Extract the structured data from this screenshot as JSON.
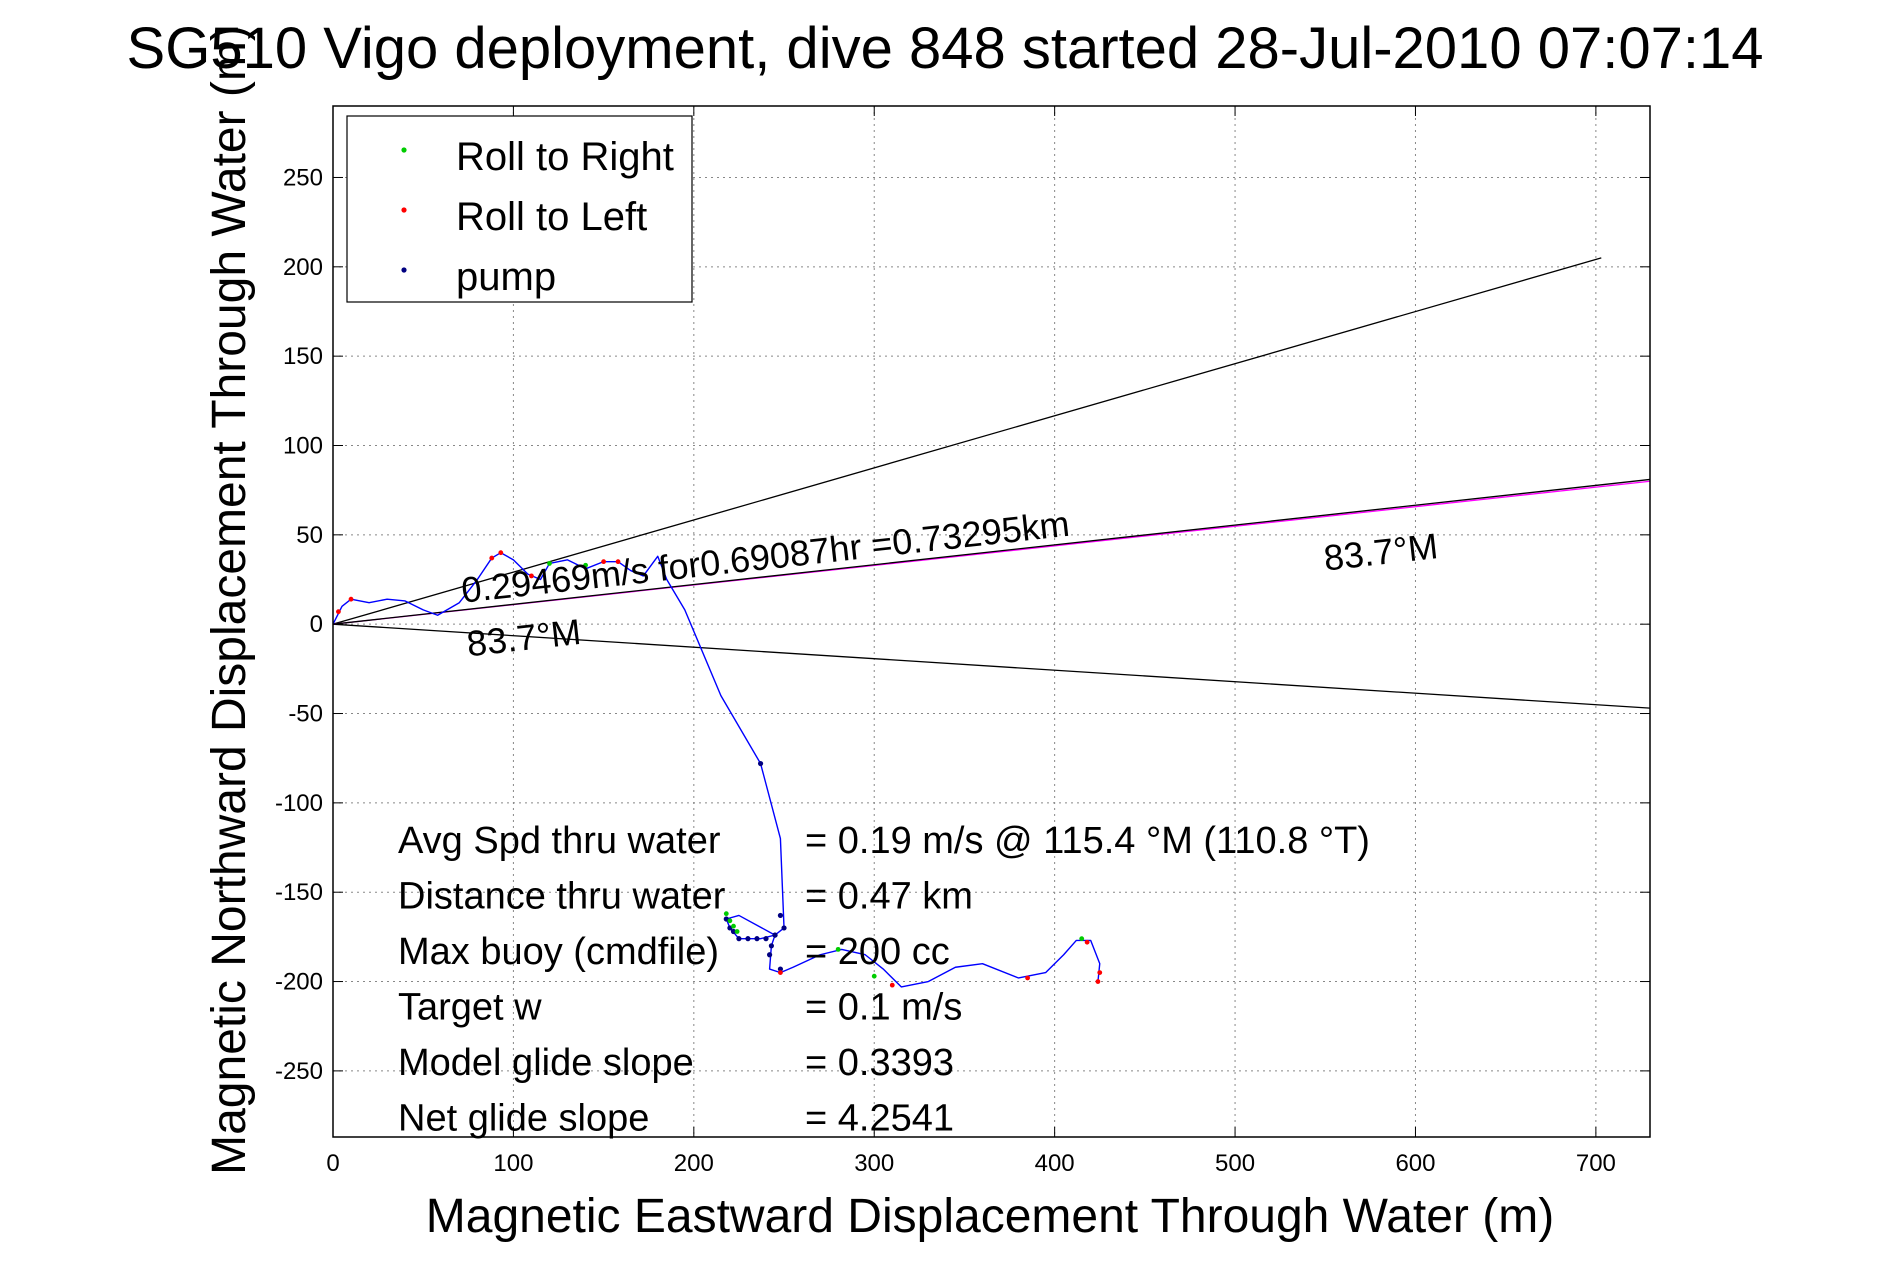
{
  "chart_data": {
    "type": "line",
    "title": "SG510 Vigo deployment, dive 848 started 28-Jul-2010 07:07:14",
    "xlabel": "Magnetic Eastward Displacement Through Water (m)",
    "ylabel": "Magnetic Northward Displacement Through Water (m)",
    "xlim": [
      0,
      730
    ],
    "ylim": [
      -287,
      290
    ],
    "xticks": [
      0,
      100,
      200,
      300,
      400,
      500,
      600,
      700
    ],
    "yticks": [
      250,
      200,
      150,
      100,
      50,
      0,
      -50,
      -100,
      -150,
      -200,
      -250
    ],
    "grid": true,
    "legend_position": "top-left",
    "legend": [
      {
        "label": "Roll to Right",
        "color": "#00cc00"
      },
      {
        "label": "Roll to Left",
        "color": "#ff0000"
      },
      {
        "label": "pump",
        "color": "#000080"
      }
    ],
    "track": {
      "color": "#0000ff",
      "x": [
        0,
        5,
        10,
        20,
        30,
        40,
        50,
        58,
        70,
        80,
        88,
        93,
        100,
        108,
        115,
        120,
        130,
        140,
        150,
        158,
        165,
        172,
        180,
        185,
        195,
        215,
        237,
        248,
        250,
        245,
        237,
        225,
        220,
        218,
        225,
        245,
        243,
        242,
        248,
        255,
        270,
        282,
        295,
        305,
        315,
        330,
        345,
        360,
        380,
        395,
        405,
        412,
        420,
        425,
        424
      ],
      "y": [
        0,
        10,
        14,
        12,
        14,
        13,
        8,
        5,
        12,
        25,
        37,
        40,
        36,
        28,
        25,
        34,
        36,
        31,
        35,
        35,
        30,
        27,
        38,
        25,
        8,
        -40,
        -78,
        -120,
        -170,
        -174,
        -176,
        -176,
        -170,
        -165,
        -163,
        -174,
        -180,
        -193,
        -195,
        -192,
        -185,
        -182,
        -185,
        -193,
        -203,
        -200,
        -192,
        -190,
        -198,
        -195,
        -185,
        -177,
        -177,
        -190,
        -200
      ]
    },
    "pump_points": {
      "color": "#000080",
      "x": [
        237,
        248,
        250,
        245,
        240,
        235,
        230,
        225,
        222,
        220,
        218,
        245,
        243,
        242,
        248
      ],
      "y": [
        -78,
        -163,
        -170,
        -174,
        -176,
        -176,
        -176,
        -176,
        -172,
        -170,
        -165,
        -174,
        -180,
        -185,
        -193
      ]
    },
    "roll_right_points": {
      "color": "#00cc00",
      "x": [
        218,
        220,
        222,
        224,
        120,
        140,
        300,
        415,
        280
      ],
      "y": [
        -162,
        -166,
        -169,
        -172,
        34,
        33,
        -197,
        -176,
        -182
      ]
    },
    "roll_left_points": {
      "color": "#ff0000",
      "x": [
        3,
        10,
        88,
        93,
        110,
        150,
        158,
        248,
        310,
        385,
        425,
        424,
        418
      ],
      "y": [
        7,
        14,
        37,
        40,
        27,
        35,
        35,
        -195,
        -202,
        -198,
        -195,
        -200,
        -178
      ]
    },
    "reference_lines": [
      {
        "x": [
          0,
          703
        ],
        "y": [
          0,
          205
        ],
        "color": "#000000"
      },
      {
        "x": [
          0,
          730
        ],
        "y": [
          0,
          -47
        ],
        "color": "#000000"
      },
      {
        "x": [
          0,
          730
        ],
        "y": [
          0,
          80
        ],
        "color": "#ff00ff"
      },
      {
        "x": [
          0,
          730
        ],
        "y": [
          0,
          81
        ],
        "color": "#000000"
      }
    ],
    "annotations": [
      {
        "text": "0.29469m/s for0.69087hr =0.73295km",
        "x": 72,
        "y": 12,
        "rotation_deg": -6.3
      },
      {
        "text": "83.7°M",
        "x": 75,
        "y": -18,
        "rotation_deg": -6.3
      },
      {
        "text": "83.7°M",
        "x": 550,
        "y": 30,
        "rotation_deg": -6.3
      }
    ],
    "stats": [
      {
        "label": "Avg Spd thru water",
        "value": "=  0.19 m/s @ 115.4 °M (110.8 °T)"
      },
      {
        "label": "Distance thru water",
        "value": "=  0.47 km"
      },
      {
        "label": "Max buoy (cmdfile)",
        "value": "= 200 cc"
      },
      {
        "label": "Target w",
        "value": "= 0.1 m/s"
      },
      {
        "label": "Model glide slope",
        "value": "= 0.3393"
      },
      {
        "label": "Net glide slope",
        "value": "= 4.2541"
      }
    ]
  }
}
